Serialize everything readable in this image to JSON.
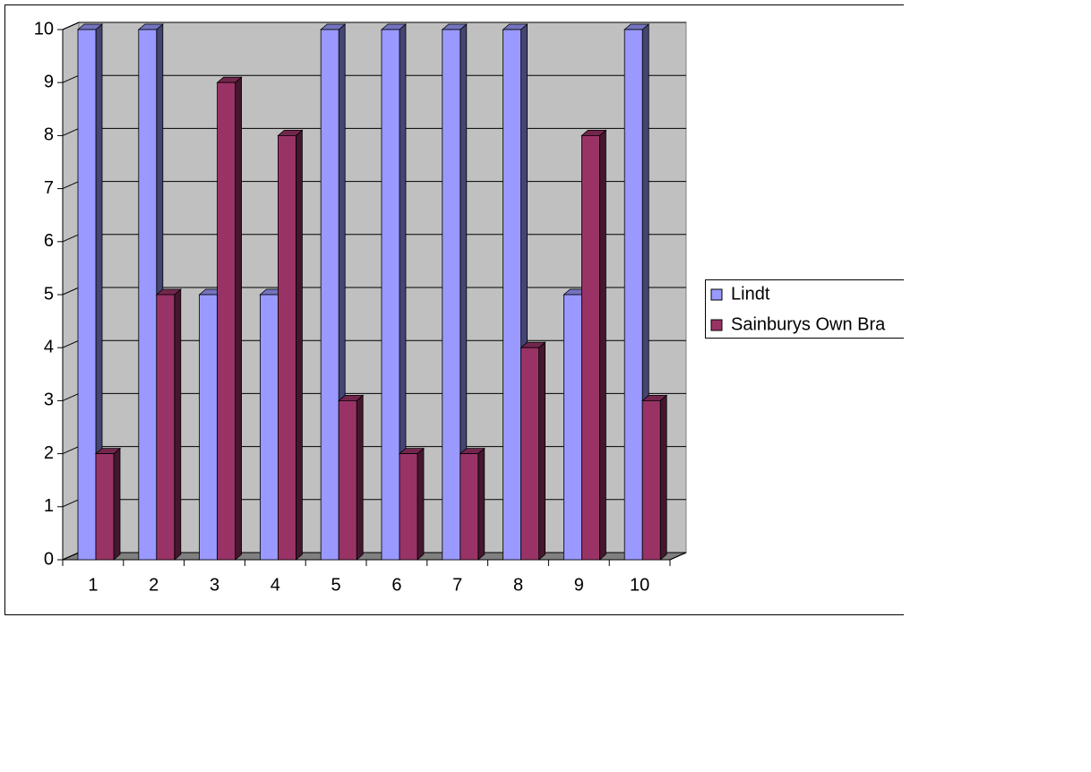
{
  "chart_data": {
    "type": "bar3d",
    "categories": [
      "1",
      "2",
      "3",
      "4",
      "5",
      "6",
      "7",
      "8",
      "9",
      "10"
    ],
    "series": [
      {
        "name": "Lindt",
        "color": "#9999ff",
        "values": [
          10,
          10,
          5,
          5,
          10,
          10,
          10,
          10,
          5,
          10
        ]
      },
      {
        "name": "Sainburys Own Bra",
        "color": "#993366",
        "values": [
          2,
          5,
          9,
          8,
          3,
          2,
          2,
          4,
          8,
          3
        ]
      }
    ],
    "ylim": [
      0,
      10
    ],
    "yticks": [
      0,
      1,
      2,
      3,
      4,
      5,
      6,
      7,
      8,
      9,
      10
    ],
    "grid": true,
    "legend": "right"
  }
}
